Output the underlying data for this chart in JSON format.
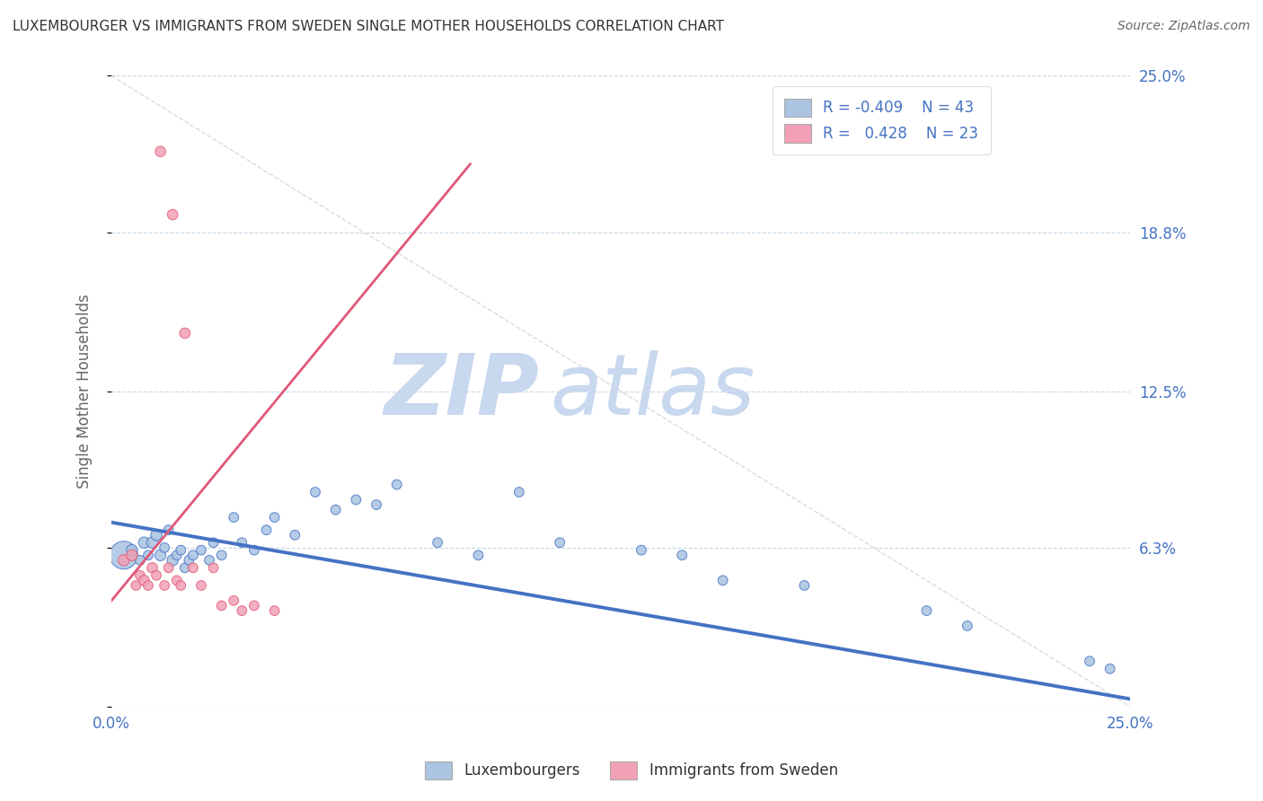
{
  "title": "LUXEMBOURGER VS IMMIGRANTS FROM SWEDEN SINGLE MOTHER HOUSEHOLDS CORRELATION CHART",
  "source": "Source: ZipAtlas.com",
  "ylabel": "Single Mother Households",
  "xlim": [
    0.0,
    0.25
  ],
  "ylim": [
    0.0,
    0.25
  ],
  "xticks": [
    0.0,
    0.05,
    0.1,
    0.15,
    0.2,
    0.25
  ],
  "yticks": [
    0.0,
    0.063,
    0.125,
    0.188,
    0.25
  ],
  "ytick_labels": [
    "",
    "6.3%",
    "12.5%",
    "18.8%",
    "25.0%"
  ],
  "xtick_labels": [
    "0.0%",
    "",
    "",
    "",
    "",
    "25.0%"
  ],
  "legend_r1": "R = -0.409",
  "legend_n1": "N = 43",
  "legend_r2": "R =  0.428",
  "legend_n2": "N = 23",
  "color_blue": "#aac4e2",
  "color_pink": "#f2a0b5",
  "color_blue_line": "#4472c4",
  "color_pink_line": "#e05878",
  "color_text_blue": "#4472c4",
  "watermark_zip": "ZIP",
  "watermark_atlas": "atlas",
  "watermark_color": "#c8d8ee",
  "blue_x": [
    0.003,
    0.005,
    0.007,
    0.008,
    0.009,
    0.01,
    0.011,
    0.012,
    0.013,
    0.014,
    0.015,
    0.016,
    0.017,
    0.018,
    0.019,
    0.02,
    0.022,
    0.024,
    0.025,
    0.027,
    0.03,
    0.032,
    0.035,
    0.038,
    0.04,
    0.045,
    0.05,
    0.055,
    0.06,
    0.065,
    0.07,
    0.08,
    0.09,
    0.1,
    0.11,
    0.13,
    0.14,
    0.15,
    0.17,
    0.2,
    0.21,
    0.24,
    0.245
  ],
  "blue_y": [
    0.06,
    0.062,
    0.058,
    0.065,
    0.06,
    0.065,
    0.068,
    0.06,
    0.063,
    0.07,
    0.058,
    0.06,
    0.062,
    0.055,
    0.058,
    0.06,
    0.062,
    0.058,
    0.065,
    0.06,
    0.075,
    0.065,
    0.062,
    0.07,
    0.075,
    0.068,
    0.085,
    0.078,
    0.082,
    0.08,
    0.088,
    0.065,
    0.06,
    0.085,
    0.065,
    0.062,
    0.06,
    0.05,
    0.048,
    0.038,
    0.032,
    0.018,
    0.015
  ],
  "blue_size": [
    500,
    80,
    60,
    80,
    60,
    80,
    80,
    80,
    60,
    60,
    80,
    60,
    60,
    60,
    60,
    60,
    60,
    60,
    60,
    60,
    60,
    60,
    60,
    60,
    60,
    60,
    60,
    60,
    60,
    60,
    60,
    60,
    60,
    60,
    60,
    60,
    60,
    60,
    60,
    60,
    60,
    60,
    60
  ],
  "pink_x": [
    0.003,
    0.005,
    0.006,
    0.007,
    0.008,
    0.009,
    0.01,
    0.011,
    0.012,
    0.013,
    0.014,
    0.015,
    0.016,
    0.017,
    0.018,
    0.02,
    0.022,
    0.025,
    0.027,
    0.03,
    0.032,
    0.035,
    0.04
  ],
  "pink_y": [
    0.058,
    0.06,
    0.048,
    0.052,
    0.05,
    0.048,
    0.055,
    0.052,
    0.22,
    0.048,
    0.055,
    0.195,
    0.05,
    0.048,
    0.148,
    0.055,
    0.048,
    0.055,
    0.04,
    0.042,
    0.038,
    0.04,
    0.038
  ],
  "pink_size": [
    80,
    80,
    60,
    60,
    70,
    60,
    70,
    60,
    70,
    60,
    60,
    70,
    60,
    60,
    70,
    60,
    60,
    60,
    60,
    60,
    60,
    60,
    60
  ],
  "blue_trend_x": [
    0.0,
    0.25
  ],
  "blue_trend_y": [
    0.073,
    0.003
  ],
  "pink_trend_x": [
    0.0,
    0.088
  ],
  "pink_trend_y": [
    0.042,
    0.215
  ]
}
